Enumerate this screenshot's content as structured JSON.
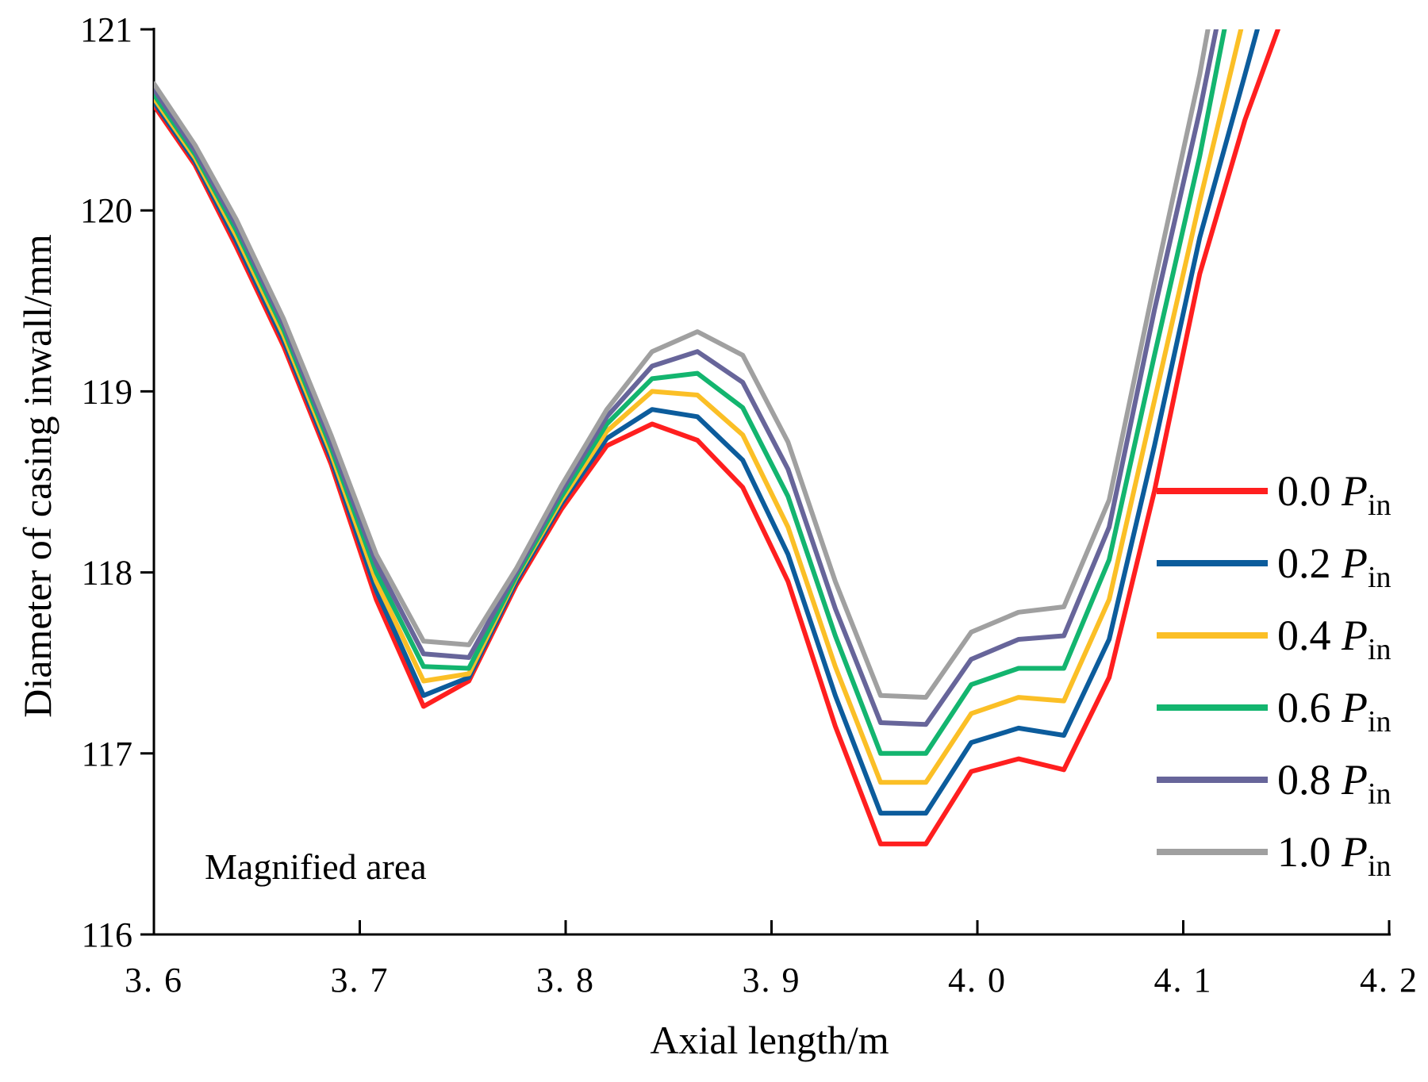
{
  "chart_data": {
    "type": "line",
    "title": "",
    "xlabel": "Axial length/m",
    "ylabel": "Diameter of casing inwall/mm",
    "xlim": [
      3.6,
      4.2
    ],
    "ylim": [
      116,
      121
    ],
    "xticks": [
      3.6,
      3.7,
      3.8,
      3.9,
      4.0,
      4.1,
      4.2
    ],
    "xtick_labels": [
      "3. 6",
      "3. 7",
      "3. 8",
      "3. 9",
      "4. 0",
      "4. 1",
      "4. 2"
    ],
    "yticks": [
      116,
      117,
      118,
      119,
      120,
      121
    ],
    "ytick_labels": [
      "116",
      "117",
      "118",
      "119",
      "120",
      "121"
    ],
    "grid": false,
    "legend_position": "right",
    "annotation": "Magnified area",
    "series": [
      {
        "name": "0.0 Pin",
        "value": "0.0",
        "symbol": "P",
        "subscript": "in",
        "color": "#ff1f1f",
        "x": [
          3.6,
          3.62,
          3.64,
          3.663,
          3.686,
          3.708,
          3.731,
          3.753,
          3.776,
          3.798,
          3.82,
          3.842,
          3.864,
          3.886,
          3.908,
          3.931,
          3.953,
          3.975,
          3.997,
          4.02,
          4.042,
          4.064,
          4.086,
          4.108,
          4.13,
          4.146
        ],
        "y": [
          120.58,
          120.25,
          119.8,
          119.25,
          118.6,
          117.85,
          117.26,
          117.4,
          117.93,
          118.35,
          118.7,
          118.82,
          118.73,
          118.47,
          117.95,
          117.15,
          116.5,
          116.5,
          116.9,
          116.97,
          116.91,
          117.42,
          118.45,
          119.65,
          120.5,
          121.0
        ]
      },
      {
        "name": "0.2 Pin",
        "value": "0.2",
        "symbol": "P",
        "subscript": "in",
        "color": "#0c5c9c",
        "x": [
          3.6,
          3.62,
          3.64,
          3.663,
          3.686,
          3.708,
          3.731,
          3.753,
          3.776,
          3.798,
          3.82,
          3.842,
          3.864,
          3.886,
          3.908,
          3.931,
          3.953,
          3.975,
          3.997,
          4.02,
          4.042,
          4.064,
          4.086,
          4.108,
          4.13,
          4.136
        ],
        "y": [
          120.6,
          120.27,
          119.83,
          119.28,
          118.63,
          117.9,
          117.32,
          117.42,
          117.95,
          118.38,
          118.74,
          118.9,
          118.86,
          118.62,
          118.1,
          117.32,
          116.67,
          116.67,
          117.06,
          117.14,
          117.1,
          117.63,
          118.7,
          119.85,
          120.75,
          121.0
        ]
      },
      {
        "name": "0.4 Pin",
        "value": "0.4",
        "symbol": "P",
        "subscript": "in",
        "color": "#fbbf26",
        "x": [
          3.6,
          3.62,
          3.64,
          3.663,
          3.686,
          3.708,
          3.731,
          3.753,
          3.776,
          3.798,
          3.82,
          3.842,
          3.864,
          3.886,
          3.908,
          3.931,
          3.953,
          3.975,
          3.997,
          4.02,
          4.042,
          4.064,
          4.086,
          4.108,
          4.128
        ],
        "y": [
          120.62,
          120.29,
          119.86,
          119.31,
          118.66,
          117.95,
          117.4,
          117.44,
          117.97,
          118.4,
          118.78,
          119.0,
          118.98,
          118.76,
          118.25,
          117.48,
          116.84,
          116.84,
          117.22,
          117.31,
          117.29,
          117.85,
          118.95,
          120.05,
          121.0
        ]
      },
      {
        "name": "0.6 Pin",
        "value": "0.6",
        "symbol": "P",
        "subscript": "in",
        "color": "#13b56f",
        "x": [
          3.6,
          3.62,
          3.64,
          3.663,
          3.686,
          3.708,
          3.731,
          3.753,
          3.776,
          3.798,
          3.82,
          3.842,
          3.864,
          3.886,
          3.908,
          3.931,
          3.953,
          3.975,
          3.997,
          4.02,
          4.042,
          4.064,
          4.086,
          4.108,
          4.12
        ],
        "y": [
          120.64,
          120.31,
          119.89,
          119.34,
          118.69,
          118.0,
          117.48,
          117.47,
          117.98,
          118.42,
          118.82,
          119.07,
          119.1,
          118.91,
          118.42,
          117.65,
          117.0,
          117.0,
          117.38,
          117.47,
          117.47,
          118.07,
          119.2,
          120.3,
          121.0
        ]
      },
      {
        "name": "0.8 Pin",
        "value": "0.8",
        "symbol": "P",
        "subscript": "in",
        "color": "#67659a",
        "x": [
          3.6,
          3.62,
          3.64,
          3.663,
          3.686,
          3.708,
          3.731,
          3.753,
          3.776,
          3.798,
          3.82,
          3.842,
          3.864,
          3.886,
          3.908,
          3.931,
          3.953,
          3.975,
          3.997,
          4.02,
          4.042,
          4.064,
          4.086,
          4.108,
          4.116
        ],
        "y": [
          120.67,
          120.33,
          119.92,
          119.37,
          118.72,
          118.05,
          117.55,
          117.53,
          118.0,
          118.45,
          118.86,
          119.14,
          119.22,
          119.05,
          118.57,
          117.8,
          117.17,
          117.16,
          117.52,
          117.63,
          117.65,
          118.25,
          119.45,
          120.55,
          121.0
        ]
      },
      {
        "name": "1.0 Pin",
        "value": "1.0",
        "symbol": "P",
        "subscript": "in",
        "color": "#a0a0a0",
        "x": [
          3.6,
          3.62,
          3.64,
          3.663,
          3.686,
          3.708,
          3.731,
          3.753,
          3.776,
          3.798,
          3.82,
          3.842,
          3.864,
          3.886,
          3.908,
          3.931,
          3.953,
          3.975,
          3.997,
          4.02,
          4.042,
          4.064,
          4.086,
          4.108,
          4.112
        ],
        "y": [
          120.7,
          120.36,
          119.95,
          119.4,
          118.76,
          118.1,
          117.62,
          117.6,
          118.02,
          118.48,
          118.9,
          119.22,
          119.33,
          119.2,
          118.72,
          117.95,
          117.32,
          117.31,
          117.67,
          117.78,
          117.81,
          118.4,
          119.6,
          120.75,
          121.0
        ]
      }
    ]
  }
}
